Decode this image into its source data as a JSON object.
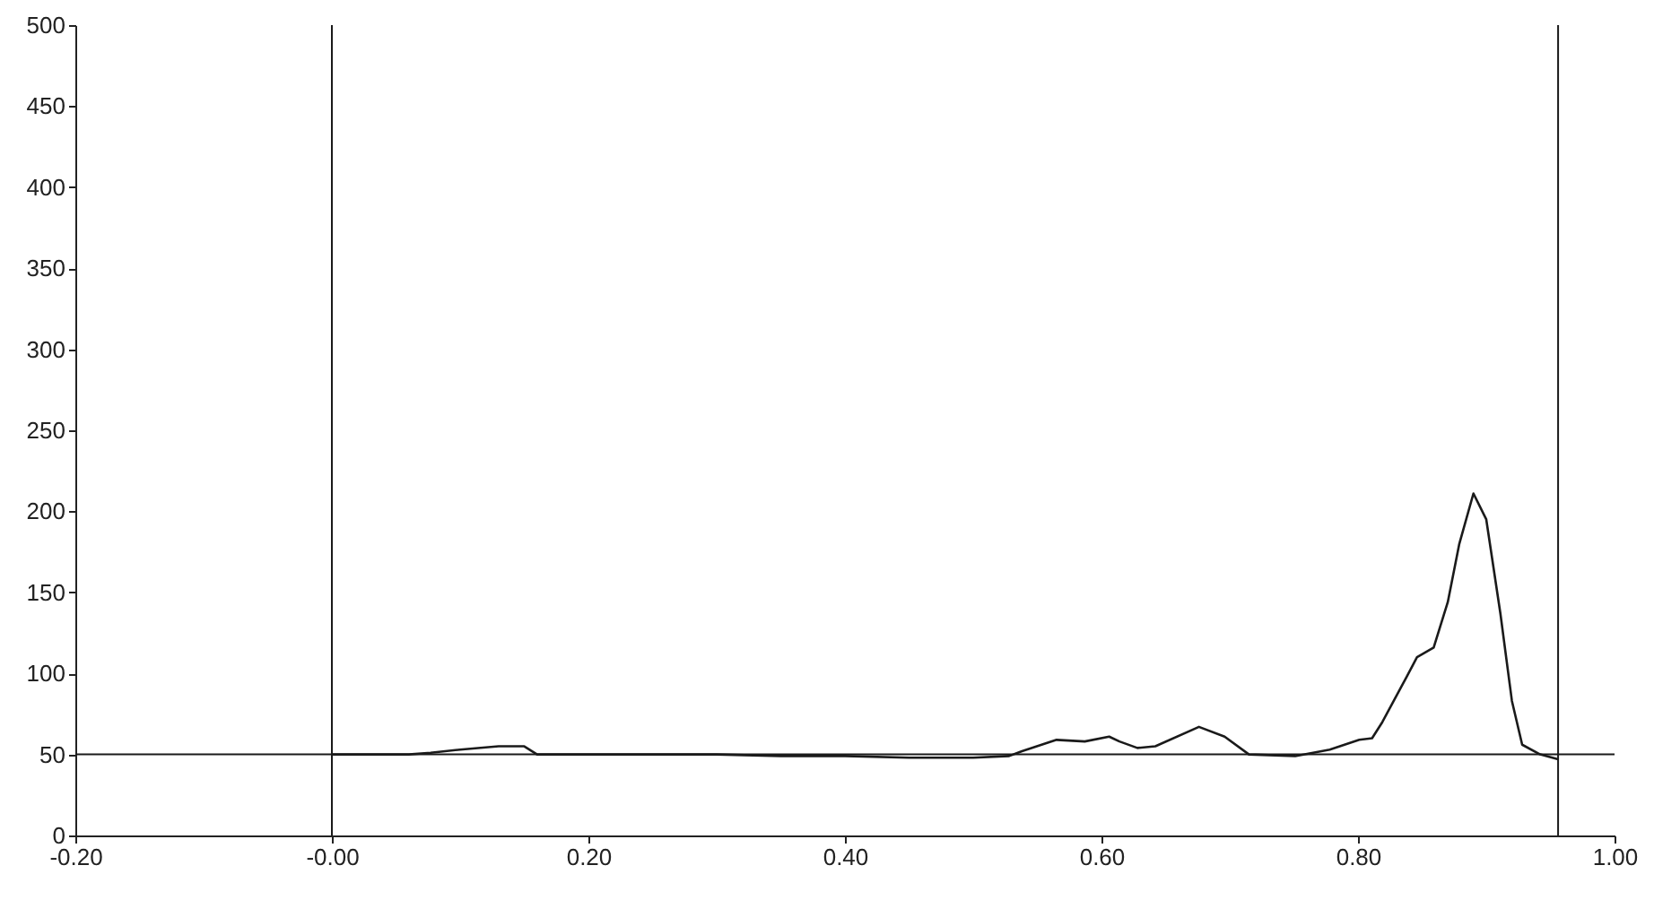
{
  "chart_data": {
    "type": "line",
    "x": [
      0,
      0.03,
      0.06,
      0.077,
      0.1,
      0.13,
      0.15,
      0.16,
      0.2,
      0.25,
      0.3,
      0.35,
      0.4,
      0.45,
      0.5,
      0.528,
      0.538,
      0.565,
      0.587,
      0.606,
      0.614,
      0.628,
      0.642,
      0.676,
      0.696,
      0.715,
      0.751,
      0.778,
      0.801,
      0.811,
      0.819,
      0.838,
      0.846,
      0.859,
      0.87,
      0.879,
      0.89,
      0.9,
      0.911,
      0.92,
      0.928,
      0.942,
      0.956
    ],
    "series": [
      {
        "color": "#1a1a1a",
        "values": [
          50,
          50,
          50,
          51,
          53,
          55,
          55,
          50,
          50,
          50,
          50,
          49,
          49,
          48,
          48,
          49,
          52,
          59,
          58,
          61,
          58,
          54,
          55,
          67,
          61,
          50,
          49,
          53,
          59,
          60,
          70,
          98,
          110,
          116,
          144,
          180,
          211,
          195,
          137,
          83,
          56,
          50,
          47
        ]
      }
    ],
    "xlim": [
      -0.2,
      1.0
    ],
    "ylim": [
      0,
      500
    ],
    "xticks": [
      {
        "value": -0.2,
        "label": "-0.20"
      },
      {
        "value": 0,
        "label": "-0.00"
      },
      {
        "value": 0.2,
        "label": "0.20"
      },
      {
        "value": 0.4,
        "label": "0.40"
      },
      {
        "value": 0.6,
        "label": "0.60"
      },
      {
        "value": 0.8,
        "label": "0.80"
      },
      {
        "value": 1.0,
        "label": "1.00"
      }
    ],
    "yticks": [
      0,
      50,
      100,
      150,
      200,
      250,
      300,
      350,
      400,
      450,
      500
    ],
    "ref_lines": [
      {
        "axis": "y",
        "value": 50,
        "color": "#1a1a1a"
      },
      {
        "axis": "x",
        "value": 0,
        "color": "#1a1a1a"
      },
      {
        "axis": "x",
        "value": 0.956,
        "color": "#1a1a1a"
      }
    ],
    "grid": false,
    "marker": "none",
    "line_style": "solid"
  }
}
